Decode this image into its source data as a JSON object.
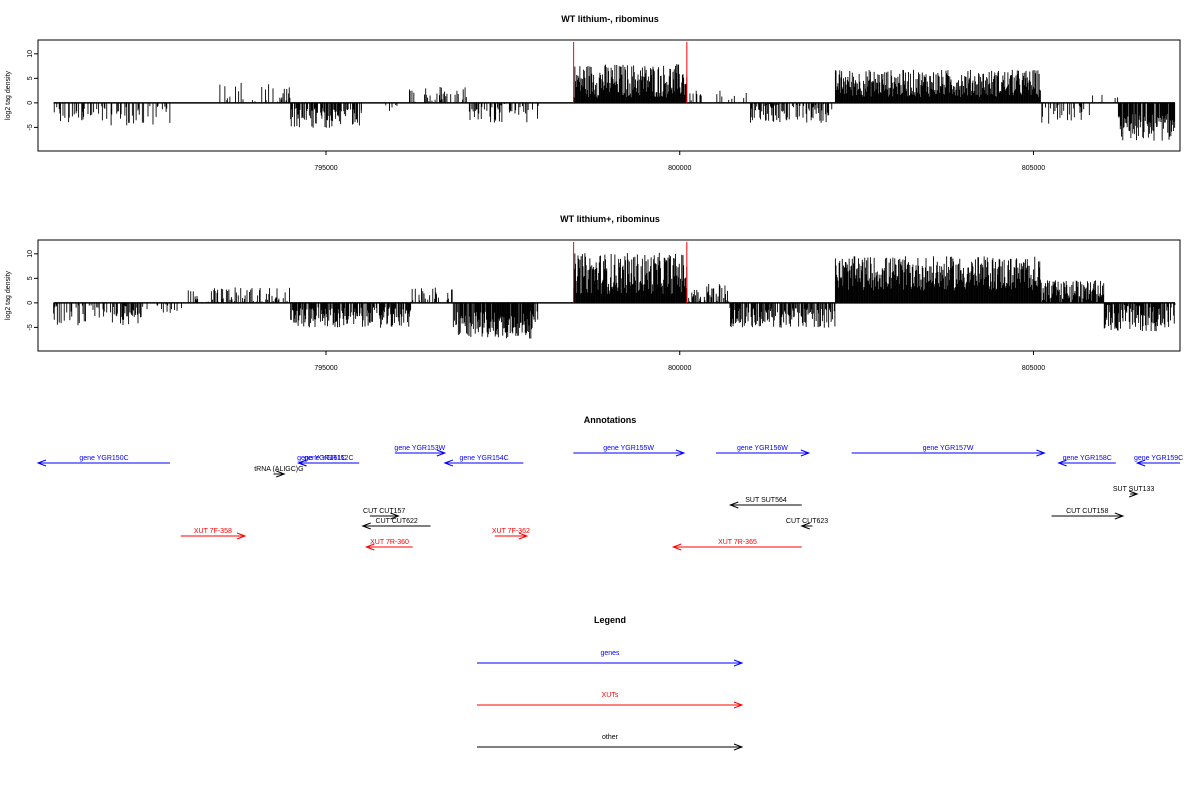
{
  "chart_data": [
    {
      "type": "bar",
      "title": "WT lithium-, ribominus",
      "ylabel": "log2 tag density",
      "xlabel": "",
      "xlim": [
        791000,
        807000
      ],
      "ylim": [
        -9,
        12
      ],
      "yticks": [
        -5,
        0,
        5,
        10
      ],
      "xticks": [
        795000,
        800000,
        805000
      ],
      "xtick_labels": [
        "795000",
        "800000",
        "805000"
      ],
      "markers": [
        798500,
        800100
      ],
      "marker_color": "#ff0000",
      "series": [
        {
          "regions": [
            {
              "start": 791150,
              "end": 792800,
              "mean": -2.5,
              "spread": 1.5,
              "density": 0.35
            },
            {
              "start": 792900,
              "end": 793500,
              "mean": 0,
              "spread": 0,
              "density": 0
            },
            {
              "start": 793500,
              "end": 794500,
              "mean": 2.0,
              "spread": 1.5,
              "density": 0.25
            },
            {
              "start": 794500,
              "end": 795500,
              "mean": -3.0,
              "spread": 1.5,
              "density": 0.6
            },
            {
              "start": 795500,
              "end": 796100,
              "mean": -1.0,
              "spread": 1.0,
              "density": 0.15
            },
            {
              "start": 796100,
              "end": 797000,
              "mean": 1.5,
              "spread": 1.5,
              "density": 0.3
            },
            {
              "start": 797000,
              "end": 798000,
              "mean": -2.0,
              "spread": 1.5,
              "density": 0.4
            },
            {
              "start": 798500,
              "end": 800100,
              "mean": 4.5,
              "spread": 2.5,
              "density": 1.0
            },
            {
              "start": 800100,
              "end": 801000,
              "mean": 0.8,
              "spread": 1.2,
              "density": 0.3
            },
            {
              "start": 801000,
              "end": 802200,
              "mean": -2.0,
              "spread": 1.5,
              "density": 0.5
            },
            {
              "start": 802200,
              "end": 805100,
              "mean": 4.0,
              "spread": 2.0,
              "density": 1.0
            },
            {
              "start": 805100,
              "end": 805800,
              "mean": -2.5,
              "spread": 1.5,
              "density": 0.35
            },
            {
              "start": 805800,
              "end": 806200,
              "mean": 0.5,
              "spread": 1.0,
              "density": 0.15
            },
            {
              "start": 806200,
              "end": 807000,
              "mean": -5.0,
              "spread": 2.0,
              "density": 0.9
            }
          ]
        }
      ]
    },
    {
      "type": "bar",
      "title": "WT lithium+, ribominus",
      "ylabel": "log2 tag density",
      "xlabel": "",
      "xlim": [
        791000,
        807000
      ],
      "ylim": [
        -9,
        12
      ],
      "yticks": [
        -5,
        0,
        5,
        10
      ],
      "xticks": [
        795000,
        800000,
        805000
      ],
      "xtick_labels": [
        "795000",
        "800000",
        "805000"
      ],
      "markers": [
        798500,
        800100
      ],
      "marker_color": "#ff0000",
      "series": [
        {
          "regions": [
            {
              "start": 791150,
              "end": 792400,
              "mean": -2.5,
              "spread": 1.5,
              "density": 0.5
            },
            {
              "start": 792400,
              "end": 793000,
              "mean": -1.0,
              "spread": 1.0,
              "density": 0.3
            },
            {
              "start": 793000,
              "end": 794500,
              "mean": 1.5,
              "spread": 1.2,
              "density": 0.35
            },
            {
              "start": 794500,
              "end": 796200,
              "mean": -3.0,
              "spread": 1.5,
              "density": 0.8
            },
            {
              "start": 796200,
              "end": 796800,
              "mean": 1.5,
              "spread": 1.2,
              "density": 0.4
            },
            {
              "start": 796800,
              "end": 798000,
              "mean": -4.5,
              "spread": 2.0,
              "density": 0.9
            },
            {
              "start": 798500,
              "end": 800100,
              "mean": 6.0,
              "spread": 3.0,
              "density": 1.0
            },
            {
              "start": 800100,
              "end": 800700,
              "mean": 2.0,
              "spread": 1.5,
              "density": 0.6
            },
            {
              "start": 800700,
              "end": 802200,
              "mean": -3.0,
              "spread": 1.5,
              "density": 0.7
            },
            {
              "start": 802200,
              "end": 805100,
              "mean": 6.0,
              "spread": 2.5,
              "density": 1.0
            },
            {
              "start": 805100,
              "end": 806000,
              "mean": 2.5,
              "spread": 1.5,
              "density": 0.8
            },
            {
              "start": 806000,
              "end": 807000,
              "mean": -3.0,
              "spread": 2.0,
              "density": 0.8
            }
          ]
        }
      ]
    }
  ],
  "annotations": {
    "title": "Annotations",
    "xlim": [
      791000,
      807000
    ],
    "items": [
      {
        "label": "gene YGR150C",
        "start": 791000,
        "end": 792850,
        "strand": "-",
        "kind": "gene",
        "row": 0
      },
      {
        "label": "gene YGR151C",
        "start": 794650,
        "end": 795300,
        "strand": "-",
        "kind": "gene",
        "row": 0
      },
      {
        "label": "gene YGR152C",
        "start": 794650,
        "end": 795500,
        "strand": "-",
        "kind": "gene",
        "row": 0
      },
      {
        "label": "gene YGR153W",
        "start": 796000,
        "end": 796700,
        "strand": "+",
        "kind": "gene",
        "row": -1
      },
      {
        "label": "gene YGR154C",
        "start": 796700,
        "end": 797800,
        "strand": "-",
        "kind": "gene",
        "row": 0
      },
      {
        "label": "gene YGR155W",
        "start": 798500,
        "end": 800050,
        "strand": "+",
        "kind": "gene",
        "row": -1
      },
      {
        "label": "gene YGR156W",
        "start": 800500,
        "end": 801800,
        "strand": "+",
        "kind": "gene",
        "row": -1
      },
      {
        "label": "gene YGR157W",
        "start": 802400,
        "end": 805100,
        "strand": "+",
        "kind": "gene",
        "row": -1
      },
      {
        "label": "gene YGR158C",
        "start": 805300,
        "end": 806100,
        "strand": "-",
        "kind": "gene",
        "row": 0
      },
      {
        "label": "gene YGR159C",
        "start": 806400,
        "end": 807000,
        "strand": "-",
        "kind": "gene",
        "row": 0
      },
      {
        "label": "tRNA (ALIGC)G",
        "start": 794300,
        "end": 794450,
        "strand": "+",
        "kind": "other",
        "row": 1
      },
      {
        "label": "CUT CUT157",
        "start": 795650,
        "end": 796050,
        "strand": "+",
        "kind": "other",
        "row": 5
      },
      {
        "label": "CUT CUT622",
        "start": 795550,
        "end": 796500,
        "strand": "-",
        "kind": "other",
        "row": 6
      },
      {
        "label": "SUT SUT564",
        "start": 800700,
        "end": 801700,
        "strand": "-",
        "kind": "other",
        "row": 4
      },
      {
        "label": "CUT CUT623",
        "start": 801700,
        "end": 801850,
        "strand": "-",
        "kind": "other",
        "row": 6
      },
      {
        "label": "SUT SUT133",
        "start": 806300,
        "end": 806400,
        "strand": "+",
        "kind": "other",
        "row": 3
      },
      {
        "label": "CUT CUT158",
        "start": 805200,
        "end": 806200,
        "strand": "+",
        "kind": "other",
        "row": 5
      },
      {
        "label": "XUT 7F-358",
        "start": 793000,
        "end": 793900,
        "strand": "+",
        "kind": "xut",
        "row": 7
      },
      {
        "label": "XUT 7R-360",
        "start": 795600,
        "end": 796250,
        "strand": "-",
        "kind": "xut",
        "row": 8
      },
      {
        "label": "XUT 7F-362",
        "start": 797400,
        "end": 797850,
        "strand": "+",
        "kind": "xut",
        "row": 7
      },
      {
        "label": "XUT 7R-365",
        "start": 799900,
        "end": 801700,
        "strand": "-",
        "kind": "xut",
        "row": 8
      }
    ]
  },
  "legend": {
    "title": "Legend",
    "entries": [
      {
        "label": "genes",
        "color": "#0000ff"
      },
      {
        "label": "XUTs",
        "color": "#ff0000"
      },
      {
        "label": "other",
        "color": "#000000"
      }
    ]
  },
  "colors": {
    "gene": "#0000ff",
    "xut": "#ff0000",
    "other": "#000000"
  }
}
